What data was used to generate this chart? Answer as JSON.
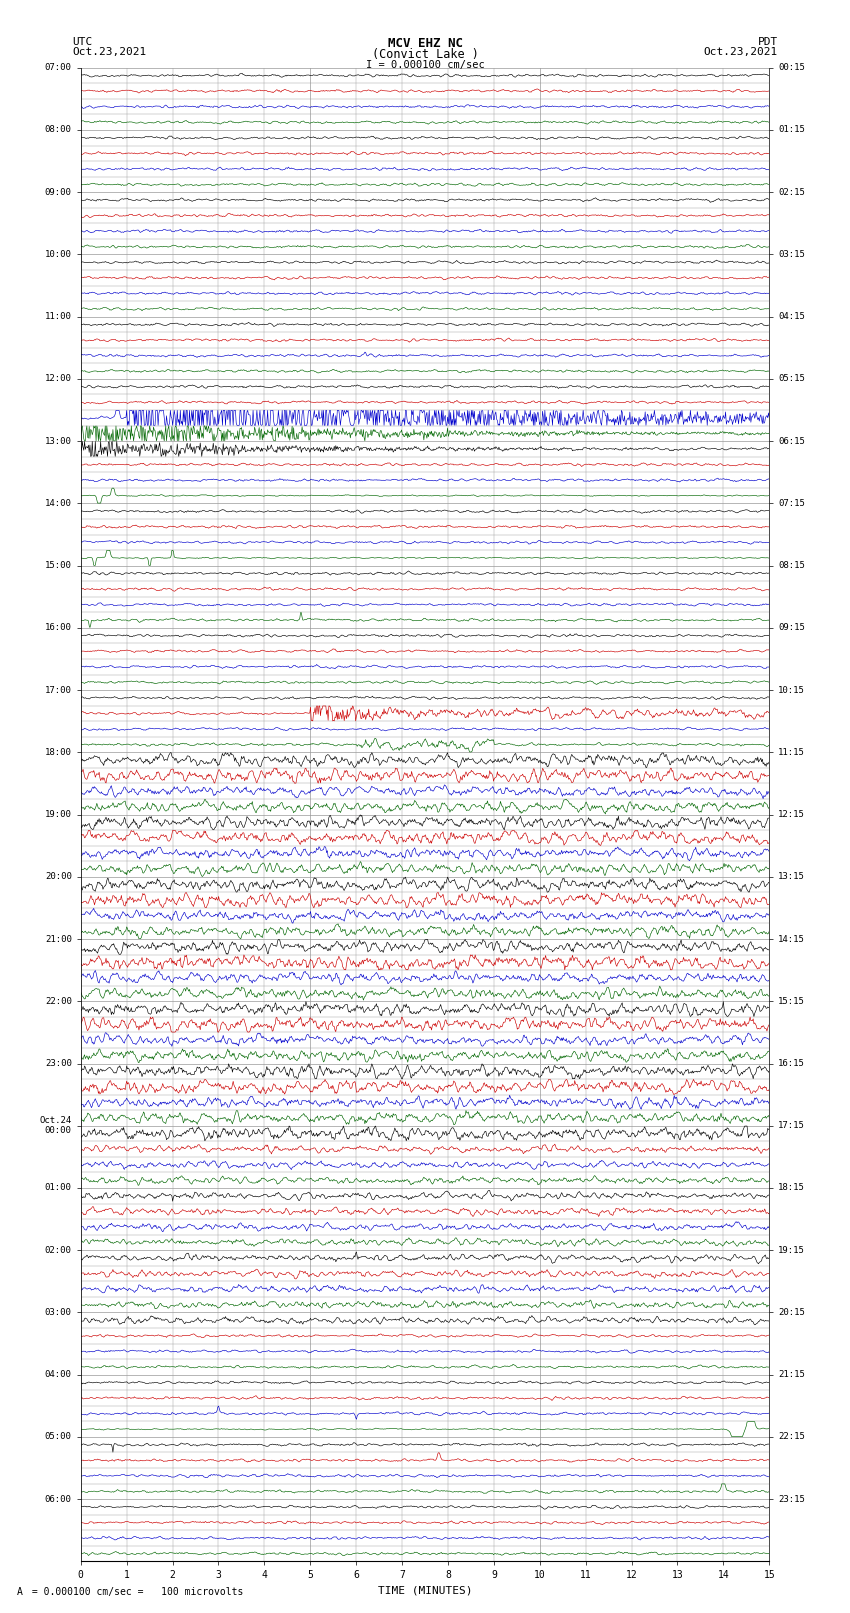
{
  "title_line1": "MCV EHZ NC",
  "title_line2": "(Convict Lake )",
  "scale_label": "I = 0.000100 cm/sec",
  "left_label": "UTC",
  "left_date": "Oct.23,2021",
  "right_label": "PDT",
  "right_date": "Oct.23,2021",
  "xlabel": "TIME (MINUTES)",
  "bottom_note": "= 0.000100 cm/sec =   100 microvolts",
  "left_times_labeled": [
    "07:00",
    "08:00",
    "09:00",
    "10:00",
    "11:00",
    "12:00",
    "13:00",
    "14:00",
    "15:00",
    "16:00",
    "17:00",
    "18:00",
    "19:00",
    "20:00",
    "21:00",
    "22:00",
    "23:00",
    "Oct.24\n00:00",
    "01:00",
    "02:00",
    "03:00",
    "04:00",
    "05:00",
    "06:00"
  ],
  "right_times_labeled": [
    "00:15",
    "01:15",
    "02:15",
    "03:15",
    "04:15",
    "05:15",
    "06:15",
    "07:15",
    "08:15",
    "09:15",
    "10:15",
    "11:15",
    "12:15",
    "13:15",
    "14:15",
    "15:15",
    "16:15",
    "17:15",
    "18:15",
    "19:15",
    "20:15",
    "21:15",
    "22:15",
    "23:15"
  ],
  "num_rows": 96,
  "row_colors_cycle": [
    "#000000",
    "#cc0000",
    "#0000cc",
    "#006600"
  ],
  "bg_color": "#ffffff",
  "grid_color": "#999999",
  "noise_seed": 42
}
